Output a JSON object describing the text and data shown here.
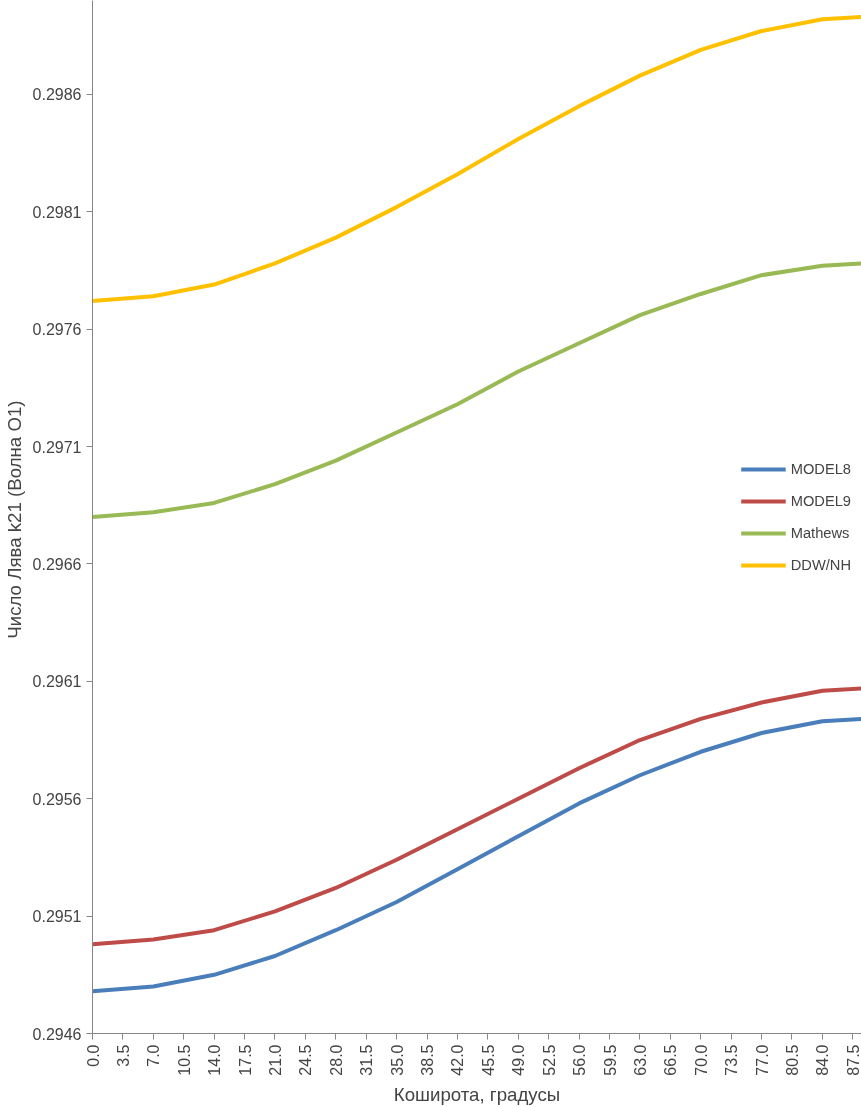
{
  "chart_data": {
    "type": "line",
    "xlabel": "Коширота, градусы",
    "ylabel": "Число  Лява k21 (Волна O1)",
    "x": [
      0,
      7,
      14,
      21,
      28,
      35,
      42,
      49,
      56,
      63,
      70,
      77,
      84,
      88.5
    ],
    "xlim": [
      0,
      88.5
    ],
    "xticks": [
      {
        "value": 0,
        "label": "0.0"
      },
      {
        "value": 3.5,
        "label": "3.5"
      },
      {
        "value": 7,
        "label": "7.0"
      },
      {
        "value": 10.5,
        "label": "10.5"
      },
      {
        "value": 14,
        "label": "14.0"
      },
      {
        "value": 17.5,
        "label": "17.5"
      },
      {
        "value": 21,
        "label": "21.0"
      },
      {
        "value": 24.5,
        "label": "24.5"
      },
      {
        "value": 28,
        "label": "28.0"
      },
      {
        "value": 31.5,
        "label": "31.5"
      },
      {
        "value": 35,
        "label": "35.0"
      },
      {
        "value": 38.5,
        "label": "38.5"
      },
      {
        "value": 42,
        "label": "42.0"
      },
      {
        "value": 45.5,
        "label": "45.5"
      },
      {
        "value": 49,
        "label": "49.0"
      },
      {
        "value": 52.5,
        "label": "52.5"
      },
      {
        "value": 56,
        "label": "56.0"
      },
      {
        "value": 59.5,
        "label": "59.5"
      },
      {
        "value": 63,
        "label": "63.0"
      },
      {
        "value": 66.5,
        "label": "66.5"
      },
      {
        "value": 70,
        "label": "70.0"
      },
      {
        "value": 73.5,
        "label": "73.5"
      },
      {
        "value": 77,
        "label": "77.0"
      },
      {
        "value": 80.5,
        "label": "80.5"
      },
      {
        "value": 84,
        "label": "84.0"
      },
      {
        "value": 87.5,
        "label": "87.5"
      }
    ],
    "ylim": [
      0.2946,
      0.299
    ],
    "yticks": [
      0.2946,
      0.2951,
      0.2956,
      0.2961,
      0.2966,
      0.2971,
      0.2976,
      0.2981,
      0.2986
    ],
    "grid": false,
    "legend": "right",
    "marker": "none",
    "line_style": "solid",
    "series": [
      {
        "name": "MODEL8",
        "color": "#4a7ebb",
        "values": [
          0.29478,
          0.2948,
          0.29485,
          0.29493,
          0.29504,
          0.29516,
          0.2953,
          0.29544,
          0.29558,
          0.2957,
          0.2958,
          0.29588,
          0.29593,
          0.29594
        ]
      },
      {
        "name": "MODEL9",
        "color": "#be4b48",
        "values": [
          0.29498,
          0.295,
          0.29504,
          0.29512,
          0.29522,
          0.29534,
          0.29547,
          0.2956,
          0.29573,
          0.29585,
          0.29594,
          0.29601,
          0.29606,
          0.29607
        ]
      },
      {
        "name": "Mathews",
        "color": "#98b954",
        "values": [
          0.2968,
          0.29682,
          0.29686,
          0.29694,
          0.29704,
          0.29716,
          0.29728,
          0.29742,
          0.29754,
          0.29766,
          0.29775,
          0.29783,
          0.29787,
          0.29788
        ]
      },
      {
        "name": "DDW/NH",
        "color": "#ffc000",
        "values": [
          0.29772,
          0.29774,
          0.29779,
          0.29788,
          0.29799,
          0.29812,
          0.29826,
          0.29841,
          0.29855,
          0.29868,
          0.29879,
          0.29887,
          0.29892,
          0.29893
        ]
      }
    ]
  }
}
